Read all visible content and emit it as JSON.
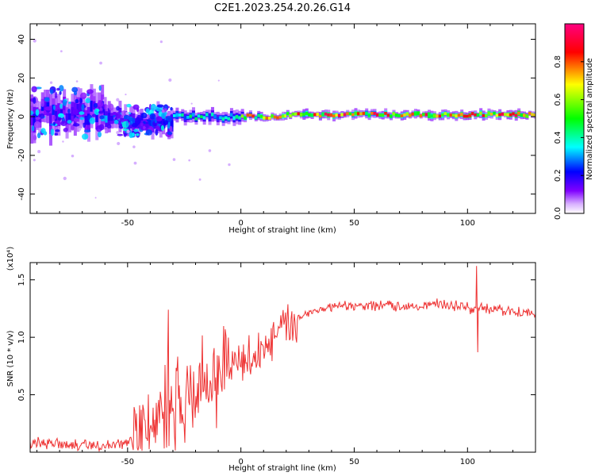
{
  "title": "C2E1.2023.254.20.26.G14",
  "chart_data": [
    {
      "type": "heatmap",
      "xlabel": "Height of straight line (km)",
      "ylabel": "Frequency (Hz)",
      "xlim": [
        -93,
        130
      ],
      "ylim": [
        -50,
        48
      ],
      "xticks": [
        -50,
        0,
        50,
        100
      ],
      "yticks": [
        -40,
        -20,
        0,
        20,
        40
      ],
      "colorbar": {
        "label": "Normalized spectral amplitude",
        "range": [
          0,
          1
        ],
        "ticks": [
          "0.0",
          "0.2",
          "0.4",
          "0.6",
          "0.8"
        ],
        "colors": [
          "#ffffff",
          "#7f00ff",
          "#0000ff",
          "#00ffff",
          "#00ff00",
          "#ffff00",
          "#ff0000",
          "#ff0080"
        ]
      },
      "ridge_segments": [
        {
          "x": [
            -93,
            -60
          ],
          "center_hz": 2,
          "spread_hz": 10,
          "amplitude": 0.3
        },
        {
          "x": [
            -60,
            -30
          ],
          "center_hz": -2,
          "spread_hz": 6,
          "amplitude": 0.4
        },
        {
          "x": [
            -30,
            0
          ],
          "center_hz": 0,
          "spread_hz": 3,
          "amplitude": 0.55
        },
        {
          "x": [
            0,
            20
          ],
          "center_hz": 0,
          "spread_hz": 2,
          "amplitude": 0.85
        },
        {
          "x": [
            20,
            130
          ],
          "center_hz": 1,
          "spread_hz": 2,
          "amplitude": 0.95
        }
      ]
    },
    {
      "type": "line",
      "xlabel": "Height of straight line (km)",
      "ylabel": "SNR (10 * v/v)",
      "y_multiplier": "(x10⁴)",
      "xlim": [
        -93,
        130
      ],
      "ylim": [
        0,
        1.65
      ],
      "xticks": [
        -50,
        0,
        50,
        100
      ],
      "yticks": [
        "0.5",
        "1.0",
        "1.5"
      ],
      "color": "#ee3333",
      "series": [
        {
          "x": [
            -93,
            -80,
            -70,
            -60,
            -50,
            -45,
            -40,
            -35,
            -30,
            -25,
            -20,
            -15,
            -10,
            -5,
            0,
            5,
            10,
            15,
            20,
            25,
            30,
            40,
            50,
            60,
            70,
            80,
            90,
            100,
            103,
            105,
            110,
            120,
            130
          ],
          "values": [
            0.07,
            0.08,
            0.06,
            0.05,
            0.08,
            0.16,
            0.25,
            0.35,
            0.42,
            0.5,
            0.55,
            0.62,
            0.7,
            0.74,
            0.78,
            0.82,
            0.9,
            1.0,
            1.1,
            1.17,
            1.22,
            1.26,
            1.27,
            1.28,
            1.27,
            1.28,
            1.29,
            1.26,
            1.24,
            1.25,
            1.24,
            1.23,
            1.2
          ]
        }
      ],
      "spikes": [
        {
          "x": -32,
          "y": 1.24
        },
        {
          "x": 104,
          "y": 1.62
        },
        {
          "x": 104.5,
          "y": 0.87
        }
      ]
    }
  ]
}
